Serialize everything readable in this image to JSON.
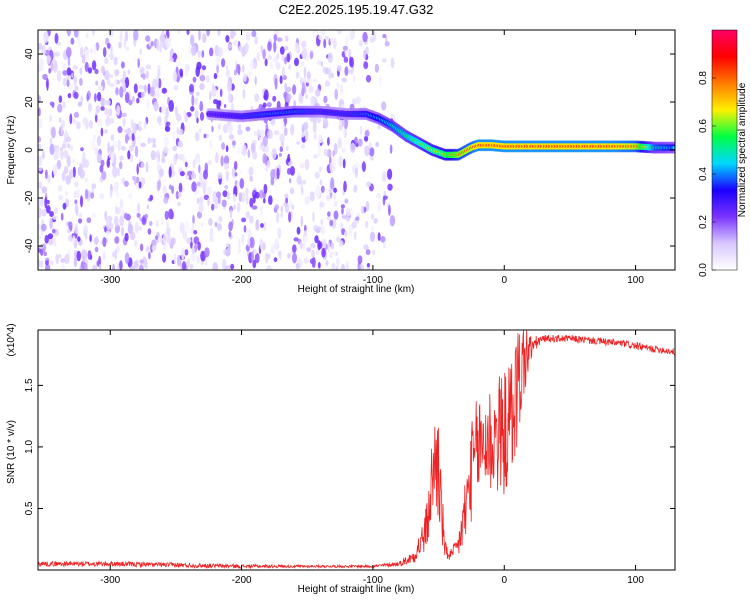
{
  "title": "C2E2.2025.195.19.47.G32",
  "chart_data": [
    {
      "type": "heatmap",
      "name": "spectrogram",
      "xlabel": "Height of straight line (km)",
      "ylabel": "Frequency (Hz)",
      "xlim": [
        -355,
        130
      ],
      "ylim": [
        -50,
        50
      ],
      "xticks": [
        -300,
        -200,
        -100,
        0,
        100
      ],
      "yticks": [
        -40,
        -20,
        0,
        20,
        40
      ],
      "colorbar": {
        "label": "Normalized spectral amplitude",
        "range": [
          0,
          1
        ],
        "ticks": [
          0.0,
          0.2,
          0.4,
          0.6,
          0.8
        ],
        "tick_labels": [
          "0.0",
          "0.2",
          "0.4",
          "0.6",
          "0.8"
        ],
        "colormap": [
          "#ffffff",
          "#d8c8ff",
          "#7a33ff",
          "#1a00ff",
          "#00d8ff",
          "#00ff44",
          "#fff000",
          "#ff7a00",
          "#ff0000",
          "#ff0066"
        ]
      },
      "noise_region": {
        "x_from": -355,
        "x_to": -85,
        "amplitude_range": [
          0.05,
          0.25
        ]
      },
      "ridge": {
        "x": [
          -225,
          -200,
          -180,
          -160,
          -140,
          -120,
          -105,
          -95,
          -85,
          -75,
          -65,
          -55,
          -45,
          -35,
          -25,
          -20,
          -10,
          0,
          20,
          40,
          60,
          80,
          100,
          115,
          130
        ],
        "y": [
          15,
          14,
          15,
          16,
          16,
          15,
          15,
          13,
          10,
          6,
          3,
          0,
          -2,
          -2,
          1,
          2,
          2,
          1.5,
          1.5,
          1.5,
          1.5,
          1.5,
          1.5,
          1,
          1
        ],
        "amplitude": [
          0.3,
          0.35,
          0.4,
          0.4,
          0.35,
          0.35,
          0.4,
          0.45,
          0.5,
          0.55,
          0.6,
          0.65,
          0.7,
          0.8,
          0.85,
          0.9,
          0.9,
          0.9,
          0.9,
          0.9,
          0.9,
          0.9,
          0.85,
          0.5,
          0.45
        ]
      }
    },
    {
      "type": "line",
      "name": "snr",
      "xlabel": "Height of straight line (km)",
      "ylabel": "SNR (10 * v/v)",
      "yscale_label": "(x10^4)",
      "xlim": [
        -355,
        130
      ],
      "ylim": [
        0,
        1.95
      ],
      "xticks": [
        -300,
        -200,
        -100,
        0,
        100
      ],
      "yticks": [
        0.5,
        1.0,
        1.5
      ],
      "ytick_labels": [
        "0.5",
        "1.0",
        "1.5"
      ],
      "color": "#ee2222",
      "envelope": {
        "x": [
          -355,
          -300,
          -250,
          -200,
          -150,
          -100,
          -80,
          -70,
          -62,
          -58,
          -55,
          -52,
          -50,
          -48,
          -45,
          -40,
          -35,
          -30,
          -25,
          -20,
          -15,
          -10,
          -5,
          0,
          5,
          10,
          15,
          20,
          25,
          30,
          40,
          50,
          60,
          70,
          80,
          90,
          100,
          110,
          120,
          130
        ],
        "y": [
          0.05,
          0.05,
          0.04,
          0.03,
          0.03,
          0.03,
          0.05,
          0.1,
          0.25,
          0.4,
          0.75,
          0.9,
          0.85,
          0.5,
          0.15,
          0.12,
          0.2,
          0.45,
          0.8,
          1.0,
          1.05,
          1.05,
          1.1,
          1.1,
          1.2,
          1.5,
          1.7,
          1.8,
          1.85,
          1.88,
          1.88,
          1.88,
          1.87,
          1.86,
          1.85,
          1.84,
          1.82,
          1.8,
          1.79,
          1.77
        ],
        "jitter": [
          0.02,
          0.02,
          0.02,
          0.015,
          0.01,
          0.01,
          0.02,
          0.05,
          0.15,
          0.2,
          0.35,
          0.45,
          0.5,
          0.3,
          0.08,
          0.05,
          0.1,
          0.3,
          0.4,
          0.45,
          0.45,
          0.5,
          0.5,
          0.5,
          0.55,
          0.5,
          0.35,
          0.12,
          0.05,
          0.03,
          0.03,
          0.03,
          0.03,
          0.03,
          0.03,
          0.03,
          0.03,
          0.03,
          0.03,
          0.03
        ]
      }
    }
  ]
}
